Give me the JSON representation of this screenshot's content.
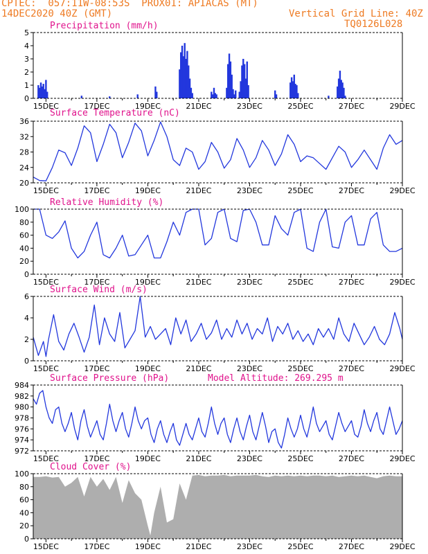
{
  "header": {
    "line1_left": "CPTEC:  057:11W-08:53S  PROX01: APIACAS (MT)",
    "line2_left": "14DEC2020 40Z (GMT)",
    "line2_right": "Vertical Grid Line: 40Z",
    "line3_right": "TQ0126L028",
    "color": "#ee7a22"
  },
  "colors": {
    "title": "#e0138c",
    "series": "#2237dd",
    "cloud": "#aeaeae",
    "frame": "#000000"
  },
  "chart_data": [
    {
      "id": "precip",
      "type": "bar",
      "title": "Precipitation (mm/h)",
      "ylim": [
        0,
        5
      ],
      "yticks": [
        0,
        1,
        2,
        3,
        4,
        5
      ],
      "xlim": [
        14.5,
        29
      ],
      "xticks": [
        "15DEC",
        "17DEC",
        "19DEC",
        "21DEC",
        "23DEC",
        "25DEC",
        "27DEC",
        "29DEC"
      ],
      "x": [
        14.7,
        14.75,
        14.8,
        14.85,
        14.9,
        14.95,
        15.0,
        15.05,
        16.4,
        17.5,
        18.6,
        19.3,
        19.35,
        20.25,
        20.3,
        20.35,
        20.4,
        20.45,
        20.5,
        20.55,
        20.6,
        20.65,
        20.7,
        20.75,
        21.5,
        21.55,
        21.6,
        21.65,
        21.7,
        22.1,
        22.15,
        22.2,
        22.25,
        22.3,
        22.35,
        22.4,
        22.45,
        22.6,
        22.65,
        22.7,
        22.75,
        22.8,
        22.85,
        22.9,
        22.95,
        24.0,
        24.05,
        24.6,
        24.65,
        24.7,
        24.75,
        24.8,
        24.85,
        24.9,
        26.1,
        26.45,
        26.5,
        26.55,
        26.6,
        26.65,
        26.7,
        26.75
      ],
      "values": [
        1.0,
        0.8,
        1.2,
        0.9,
        1.1,
        0.7,
        1.4,
        0.5,
        0.2,
        0.15,
        0.3,
        0.9,
        0.5,
        2.2,
        3.5,
        4.0,
        3.2,
        4.2,
        3.0,
        3.6,
        2.5,
        1.5,
        0.8,
        0.4,
        0.5,
        0.3,
        0.8,
        0.4,
        0.3,
        0.8,
        2.6,
        3.4,
        2.8,
        1.8,
        0.7,
        0.3,
        0.6,
        0.5,
        1.3,
        2.5,
        3.0,
        2.6,
        1.5,
        2.8,
        1.0,
        0.6,
        0.3,
        1.2,
        1.6,
        1.3,
        1.8,
        1.1,
        1.0,
        0.4,
        0.2,
        0.9,
        1.5,
        2.1,
        1.4,
        1.2,
        0.8,
        0.2
      ]
    },
    {
      "id": "temp",
      "type": "line",
      "title": "Surface Temperature (nC)",
      "ylim": [
        20,
        36
      ],
      "yticks": [
        20,
        24,
        28,
        32,
        36
      ],
      "xlim": [
        14.5,
        29
      ],
      "xticks": [
        "15DEC",
        "17DEC",
        "19DEC",
        "21DEC",
        "23DEC",
        "25DEC",
        "27DEC",
        "29DEC"
      ],
      "x": [
        14.5,
        14.75,
        15.0,
        15.25,
        15.5,
        15.75,
        16.0,
        16.25,
        16.5,
        16.75,
        17.0,
        17.25,
        17.5,
        17.75,
        18.0,
        18.25,
        18.5,
        18.75,
        19.0,
        19.25,
        19.5,
        19.75,
        20.0,
        20.25,
        20.5,
        20.75,
        21.0,
        21.25,
        21.5,
        21.75,
        22.0,
        22.25,
        22.5,
        22.75,
        23.0,
        23.25,
        23.5,
        23.75,
        24.0,
        24.25,
        24.5,
        24.75,
        25.0,
        25.25,
        25.5,
        25.75,
        26.0,
        26.25,
        26.5,
        26.75,
        27.0,
        27.25,
        27.5,
        27.75,
        28.0,
        28.25,
        28.5,
        28.75,
        29.0
      ],
      "values": [
        21.5,
        20.6,
        20.5,
        24.0,
        28.5,
        27.8,
        24.5,
        29.0,
        34.8,
        33.0,
        25.5,
        30.0,
        35.2,
        33.0,
        26.5,
        30.5,
        35.5,
        33.5,
        27.0,
        31.0,
        35.8,
        32.0,
        26.0,
        24.5,
        29.0,
        28.0,
        23.5,
        25.5,
        30.5,
        28.0,
        23.8,
        26.0,
        31.5,
        28.5,
        24.0,
        26.5,
        31.0,
        28.5,
        24.5,
        27.5,
        32.5,
        30.0,
        25.5,
        27.0,
        26.5,
        25.0,
        23.5,
        26.5,
        29.5,
        28.0,
        24.0,
        26.0,
        28.5,
        26.0,
        23.5,
        29.0,
        32.5,
        30.0,
        31.0
      ]
    },
    {
      "id": "rh",
      "type": "line",
      "title": "Relative Humidity (%)",
      "ylim": [
        0,
        100
      ],
      "yticks": [
        0,
        20,
        40,
        60,
        80,
        100
      ],
      "xlim": [
        14.5,
        29
      ],
      "xticks": [
        "15DEC",
        "17DEC",
        "19DEC",
        "21DEC",
        "23DEC",
        "25DEC",
        "27DEC",
        "29DEC"
      ],
      "x": [
        14.5,
        14.75,
        15.0,
        15.25,
        15.5,
        15.75,
        16.0,
        16.25,
        16.5,
        16.75,
        17.0,
        17.25,
        17.5,
        17.75,
        18.0,
        18.25,
        18.5,
        18.75,
        19.0,
        19.25,
        19.5,
        19.75,
        20.0,
        20.25,
        20.5,
        20.75,
        21.0,
        21.25,
        21.5,
        21.75,
        22.0,
        22.25,
        22.5,
        22.75,
        23.0,
        23.25,
        23.5,
        23.75,
        24.0,
        24.25,
        24.5,
        24.75,
        25.0,
        25.25,
        25.5,
        25.75,
        26.0,
        26.25,
        26.5,
        26.75,
        27.0,
        27.25,
        27.5,
        27.75,
        28.0,
        28.25,
        28.5,
        28.75,
        29.0
      ],
      "values": [
        100,
        100,
        60,
        55,
        65,
        82,
        40,
        25,
        35,
        60,
        80,
        30,
        25,
        40,
        60,
        28,
        30,
        45,
        60,
        25,
        25,
        50,
        80,
        60,
        95,
        100,
        100,
        45,
        55,
        95,
        100,
        55,
        50,
        98,
        100,
        80,
        45,
        45,
        90,
        70,
        60,
        95,
        100,
        40,
        35,
        80,
        100,
        42,
        40,
        80,
        90,
        45,
        45,
        85,
        95,
        45,
        35,
        35,
        40
      ]
    },
    {
      "id": "wind",
      "type": "line",
      "title": "Surface Wind (m/s)",
      "ylim": [
        0,
        6
      ],
      "yticks": [
        0,
        2,
        4,
        6
      ],
      "xlim": [
        14.5,
        29
      ],
      "xticks": [
        "15DEC",
        "17DEC",
        "19DEC",
        "21DEC",
        "23DEC",
        "25DEC",
        "27DEC",
        "29DEC"
      ],
      "x": [
        14.5,
        14.7,
        14.9,
        15.0,
        15.1,
        15.3,
        15.5,
        15.7,
        15.9,
        16.1,
        16.3,
        16.5,
        16.7,
        16.9,
        17.1,
        17.3,
        17.5,
        17.7,
        17.9,
        18.1,
        18.3,
        18.5,
        18.7,
        18.9,
        19.1,
        19.3,
        19.5,
        19.7,
        19.9,
        20.1,
        20.3,
        20.5,
        20.7,
        20.9,
        21.1,
        21.3,
        21.5,
        21.7,
        21.9,
        22.1,
        22.3,
        22.5,
        22.7,
        22.9,
        23.1,
        23.3,
        23.5,
        23.7,
        23.9,
        24.1,
        24.3,
        24.5,
        24.7,
        24.9,
        25.1,
        25.3,
        25.5,
        25.7,
        25.9,
        26.1,
        26.3,
        26.5,
        26.7,
        26.9,
        27.1,
        27.3,
        27.5,
        27.7,
        27.9,
        28.1,
        28.3,
        28.5,
        28.7,
        28.9,
        29.0
      ],
      "values": [
        2.2,
        0.5,
        1.8,
        0.4,
        2.0,
        4.3,
        1.8,
        1.0,
        2.5,
        3.5,
        2.2,
        0.8,
        2.2,
        5.2,
        1.5,
        4.0,
        2.5,
        1.8,
        4.5,
        1.2,
        2.0,
        2.8,
        6.0,
        2.2,
        3.2,
        2.0,
        2.5,
        3.0,
        1.5,
        4.0,
        2.5,
        3.8,
        1.8,
        2.5,
        3.5,
        2.0,
        2.6,
        3.8,
        2.0,
        3.0,
        2.2,
        3.8,
        2.5,
        3.5,
        2.0,
        3.0,
        2.5,
        4.0,
        1.8,
        3.2,
        2.5,
        3.5,
        2.0,
        2.8,
        1.8,
        2.5,
        1.5,
        3.0,
        2.2,
        3.0,
        2.0,
        4.0,
        2.5,
        1.8,
        3.5,
        2.5,
        1.5,
        2.2,
        3.2,
        2.0,
        1.5,
        2.5,
        4.5,
        3.0,
        2.0
      ]
    },
    {
      "id": "pressure",
      "type": "line",
      "title": "Surface Pressure (hPa)",
      "annotation": "Model Altitude: 269.295 m",
      "ylim": [
        972,
        984
      ],
      "yticks": [
        972,
        974,
        976,
        978,
        980,
        982,
        984
      ],
      "xlim": [
        14.5,
        29
      ],
      "xticks": [
        "15DEC",
        "17DEC",
        "19DEC",
        "21DEC",
        "23DEC",
        "25DEC",
        "27DEC",
        "29DEC"
      ],
      "x": [
        14.5,
        14.625,
        14.75,
        14.875,
        15.0,
        15.125,
        15.25,
        15.375,
        15.5,
        15.625,
        15.75,
        15.875,
        16.0,
        16.125,
        16.25,
        16.375,
        16.5,
        16.625,
        16.75,
        16.875,
        17.0,
        17.125,
        17.25,
        17.375,
        17.5,
        17.625,
        17.75,
        17.875,
        18.0,
        18.125,
        18.25,
        18.375,
        18.5,
        18.625,
        18.75,
        18.875,
        19.0,
        19.125,
        19.25,
        19.375,
        19.5,
        19.625,
        19.75,
        19.875,
        20.0,
        20.125,
        20.25,
        20.375,
        20.5,
        20.625,
        20.75,
        20.875,
        21.0,
        21.125,
        21.25,
        21.375,
        21.5,
        21.625,
        21.75,
        21.875,
        22.0,
        22.125,
        22.25,
        22.375,
        22.5,
        22.625,
        22.75,
        22.875,
        23.0,
        23.125,
        23.25,
        23.375,
        23.5,
        23.625,
        23.75,
        23.875,
        24.0,
        24.125,
        24.25,
        24.375,
        24.5,
        24.625,
        24.75,
        24.875,
        25.0,
        25.125,
        25.25,
        25.375,
        25.5,
        25.625,
        25.75,
        25.875,
        26.0,
        26.125,
        26.25,
        26.375,
        26.5,
        26.625,
        26.75,
        26.875,
        27.0,
        27.125,
        27.25,
        27.375,
        27.5,
        27.625,
        27.75,
        27.875,
        28.0,
        28.125,
        28.25,
        28.375,
        28.5,
        28.625,
        28.75,
        28.875,
        29.0
      ],
      "values": [
        981.5,
        980.5,
        982.5,
        983.0,
        980.0,
        978.0,
        977.0,
        979.5,
        980.0,
        977.0,
        975.5,
        977.0,
        979.0,
        976.0,
        974.0,
        977.5,
        979.5,
        976.5,
        974.5,
        976.0,
        977.5,
        975.0,
        974.0,
        977.0,
        980.5,
        977.5,
        975.5,
        977.5,
        979.0,
        976.0,
        974.5,
        977.0,
        980.0,
        977.5,
        976.0,
        977.5,
        978.0,
        975.0,
        973.5,
        976.0,
        977.5,
        975.0,
        973.5,
        975.5,
        977.0,
        974.0,
        973.0,
        975.0,
        977.0,
        975.0,
        974.0,
        976.0,
        978.0,
        975.5,
        974.5,
        977.0,
        980.0,
        977.0,
        975.0,
        977.0,
        978.0,
        975.0,
        973.5,
        976.0,
        978.0,
        975.5,
        974.0,
        976.5,
        978.5,
        975.5,
        974.0,
        976.5,
        979.0,
        976.5,
        973.5,
        975.5,
        976.0,
        973.5,
        972.5,
        975.0,
        978.0,
        976.0,
        974.5,
        976.0,
        978.5,
        976.0,
        974.5,
        977.0,
        980.0,
        977.0,
        975.5,
        976.5,
        977.5,
        975.0,
        974.0,
        976.5,
        979.0,
        977.0,
        975.5,
        976.5,
        977.5,
        975.0,
        974.5,
        976.5,
        979.5,
        977.0,
        975.5,
        977.5,
        979.0,
        976.0,
        975.0,
        977.5,
        980.0,
        977.5,
        975.0,
        976.0,
        977.5
      ]
    },
    {
      "id": "cloud",
      "type": "area",
      "title": "Cloud Cover (%)",
      "ylim": [
        0,
        100
      ],
      "yticks": [
        0,
        20,
        40,
        60,
        80,
        100
      ],
      "xlim": [
        14.5,
        29
      ],
      "xticks": [
        "15DEC",
        "17DEC",
        "19DEC",
        "21DEC",
        "23DEC",
        "25DEC",
        "27DEC",
        "29DEC"
      ],
      "x": [
        14.5,
        14.75,
        15.0,
        15.25,
        15.5,
        15.75,
        16.0,
        16.25,
        16.5,
        16.75,
        17.0,
        17.25,
        17.5,
        17.75,
        18.0,
        18.25,
        18.5,
        18.75,
        19.0,
        19.1,
        19.25,
        19.5,
        19.75,
        20.0,
        20.25,
        20.5,
        20.75,
        21.0,
        21.25,
        21.5,
        21.75,
        22.0,
        22.25,
        22.5,
        22.75,
        23.0,
        23.25,
        23.5,
        23.75,
        24.0,
        24.25,
        24.5,
        24.75,
        25.0,
        25.25,
        25.5,
        25.75,
        26.0,
        26.25,
        26.5,
        26.75,
        27.0,
        27.25,
        27.5,
        27.75,
        28.0,
        28.25,
        28.5,
        28.75,
        29.0
      ],
      "values": [
        95,
        95,
        96,
        94,
        95,
        80,
        86,
        95,
        65,
        95,
        80,
        92,
        75,
        95,
        55,
        90,
        70,
        60,
        20,
        5,
        40,
        80,
        25,
        30,
        85,
        60,
        97,
        98,
        96,
        97,
        97,
        98,
        96,
        97,
        97,
        97,
        98,
        96,
        95,
        97,
        96,
        97,
        96,
        97,
        96,
        97,
        97,
        96,
        97,
        95,
        96,
        97,
        96,
        97,
        95,
        93,
        96,
        97,
        96,
        96
      ]
    }
  ]
}
